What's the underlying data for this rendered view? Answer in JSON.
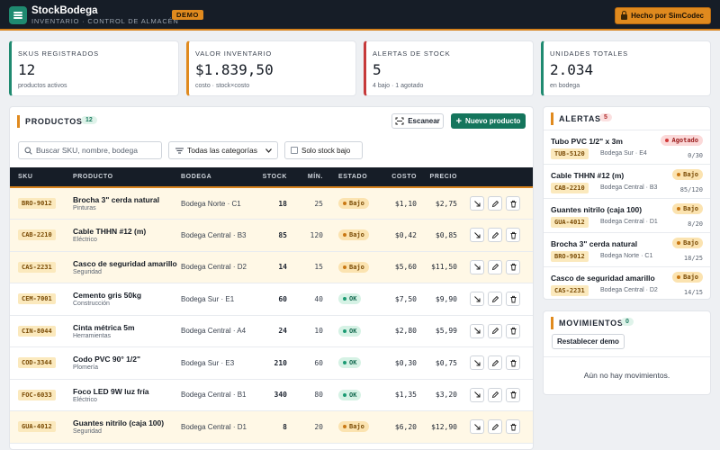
{
  "header": {
    "title": "StockBodega",
    "subtitle": "INVENTARIO · CONTROL DE ALMACÉN",
    "demo_badge": "DEMO",
    "made_by": "Hecho por SimCodec"
  },
  "stats": [
    {
      "label": "SKUS REGISTRADOS",
      "value": "12",
      "note": "productos activos",
      "color": "#1f8a70"
    },
    {
      "label": "VALOR INVENTARIO",
      "value": "$1.839,50",
      "note": "costo · stock×costo",
      "color": "#e08a1e"
    },
    {
      "label": "ALERTAS DE STOCK",
      "value": "5",
      "note": "4 bajo · 1 agotado",
      "color": "#c6393a"
    },
    {
      "label": "UNIDADES TOTALES",
      "value": "2.034",
      "note": "en bodega",
      "color": "#1f8a70"
    }
  ],
  "products": {
    "title": "PRODUCTOS",
    "count": "12",
    "scan_label": "Escanear",
    "new_label": "Nuevo producto",
    "search_placeholder": "Buscar SKU, nombre, bodega",
    "category_selected": "Todas las categorías",
    "low_only_label": "Solo stock bajo",
    "columns": [
      "SKU",
      "PRODUCTO",
      "BODEGA",
      "STOCK",
      "MÍN.",
      "ESTADO",
      "COSTO",
      "PRECIO"
    ],
    "rows": [
      {
        "sku": "BRO-9012",
        "name": "Brocha 3\" cerda natural",
        "cat": "Pinturas",
        "loc": "Bodega Norte · C1",
        "stock": "18",
        "min": "25",
        "status": "Bajo",
        "cost": "$1,10",
        "price": "$2,75"
      },
      {
        "sku": "CAB-2210",
        "name": "Cable THHN #12 (m)",
        "cat": "Eléctrico",
        "loc": "Bodega Central · B3",
        "stock": "85",
        "min": "120",
        "status": "Bajo",
        "cost": "$0,42",
        "price": "$0,85"
      },
      {
        "sku": "CAS-2231",
        "name": "Casco de seguridad amarillo",
        "cat": "Seguridad",
        "loc": "Bodega Central · D2",
        "stock": "14",
        "min": "15",
        "status": "Bajo",
        "cost": "$5,60",
        "price": "$11,50"
      },
      {
        "sku": "CEM-7001",
        "name": "Cemento gris 50kg",
        "cat": "Construcción",
        "loc": "Bodega Sur · E1",
        "stock": "60",
        "min": "40",
        "status": "OK",
        "cost": "$7,50",
        "price": "$9,90"
      },
      {
        "sku": "CIN-8044",
        "name": "Cinta métrica 5m",
        "cat": "Herramientas",
        "loc": "Bodega Central · A4",
        "stock": "24",
        "min": "10",
        "status": "OK",
        "cost": "$2,80",
        "price": "$5,99"
      },
      {
        "sku": "COD-3344",
        "name": "Codo PVC 90° 1/2\"",
        "cat": "Plomería",
        "loc": "Bodega Sur · E3",
        "stock": "210",
        "min": "60",
        "status": "OK",
        "cost": "$0,30",
        "price": "$0,75"
      },
      {
        "sku": "FOC-6033",
        "name": "Foco LED 9W luz fría",
        "cat": "Eléctrico",
        "loc": "Bodega Central · B1",
        "stock": "340",
        "min": "80",
        "status": "OK",
        "cost": "$1,35",
        "price": "$3,20"
      },
      {
        "sku": "GUA-4012",
        "name": "Guantes nitrilo (caja 100)",
        "cat": "Seguridad",
        "loc": "Bodega Central · D1",
        "stock": "8",
        "min": "20",
        "status": "Bajo",
        "cost": "$6,20",
        "price": "$12,90"
      }
    ]
  },
  "alerts": {
    "title": "ALERTAS",
    "count": "5",
    "items": [
      {
        "name": "Tubo PVC 1/2\" x 3m",
        "sku": "TUB-5120",
        "loc": "Bodega Sur · E4",
        "status": "Agotado",
        "qty": "0/30"
      },
      {
        "name": "Cable THHN #12 (m)",
        "sku": "CAB-2210",
        "loc": "Bodega Central · B3",
        "status": "Bajo",
        "qty": "85/120"
      },
      {
        "name": "Guantes nitrilo (caja 100)",
        "sku": "GUA-4012",
        "loc": "Bodega Central · D1",
        "status": "Bajo",
        "qty": "8/20"
      },
      {
        "name": "Brocha 3\" cerda natural",
        "sku": "BRO-9012",
        "loc": "Bodega Norte · C1",
        "status": "Bajo",
        "qty": "18/25"
      },
      {
        "name": "Casco de seguridad amarillo",
        "sku": "CAS-2231",
        "loc": "Bodega Central · D2",
        "status": "Bajo",
        "qty": "14/15"
      }
    ]
  },
  "movements": {
    "title": "MOVIMIENTOS",
    "count": "0",
    "reset_label": "Restablecer demo",
    "empty_text": "Aún no hay movimientos."
  }
}
